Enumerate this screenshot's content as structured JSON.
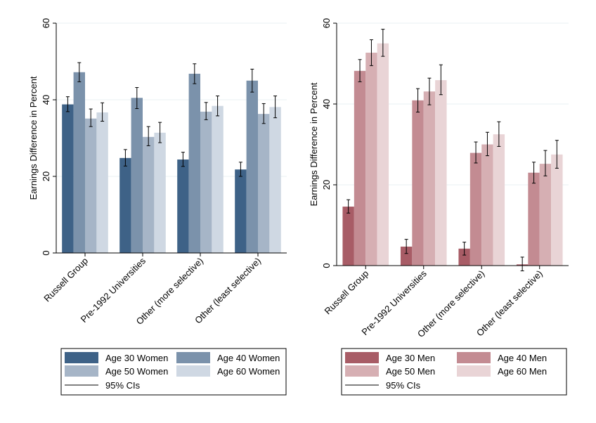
{
  "chart_data": [
    {
      "type": "bar",
      "title": "",
      "xlabel": "",
      "ylabel": "Earnings Difference in Percent",
      "ylim": [
        0,
        60
      ],
      "yticks": [
        "0",
        "20",
        "40",
        "60"
      ],
      "grid": true,
      "categories": [
        "Russell Group",
        "Pre-1992 Universities",
        "Other (more selective)",
        "Other (least selective)"
      ],
      "series": [
        {
          "name": "Age 30 Women",
          "color": "#3e6287",
          "values": [
            38.8,
            24.8,
            24.4,
            21.8
          ],
          "ci_low": [
            36.9,
            22.7,
            22.6,
            20.0
          ],
          "ci_high": [
            40.8,
            27.0,
            26.3,
            23.7
          ]
        },
        {
          "name": "Age 40 Women",
          "color": "#7b92ab",
          "values": [
            47.2,
            40.5,
            46.8,
            45.0
          ],
          "ci_low": [
            44.7,
            37.7,
            44.2,
            42.0
          ],
          "ci_high": [
            49.7,
            43.2,
            49.4,
            48.0
          ]
        },
        {
          "name": "Age 50 Women",
          "color": "#a6b5c7",
          "values": [
            35.1,
            30.3,
            36.9,
            36.3
          ],
          "ci_low": [
            33.0,
            28.0,
            34.8,
            33.8
          ],
          "ci_high": [
            37.6,
            33.0,
            39.3,
            39.0
          ]
        },
        {
          "name": "Age 60 Women",
          "color": "#cfd8e3",
          "values": [
            36.7,
            31.4,
            38.4,
            38.1
          ],
          "ci_low": [
            34.4,
            28.8,
            35.8,
            35.3
          ],
          "ci_high": [
            39.2,
            34.1,
            41.0,
            41.0
          ]
        }
      ],
      "legend": {
        "placement": "bottom",
        "ci_label": "95% CIs"
      }
    },
    {
      "type": "bar",
      "title": "",
      "xlabel": "",
      "ylabel": "Earnings Difference in Percent",
      "ylim": [
        0,
        60
      ],
      "yticks": [
        "0",
        "20",
        "40",
        "60"
      ],
      "grid": true,
      "categories": [
        "Russell Group",
        "Pre-1992 Universities",
        "Other (more selective)",
        "Other (least selective)"
      ],
      "series": [
        {
          "name": "Age 30 Men",
          "color": "#a85c66",
          "values": [
            14.6,
            4.7,
            4.2,
            0.3
          ],
          "ci_low": [
            13.0,
            3.0,
            2.6,
            -1.3
          ],
          "ci_high": [
            16.3,
            6.5,
            5.8,
            2.1
          ]
        },
        {
          "name": "Age 40 Men",
          "color": "#c38b92",
          "values": [
            48.2,
            40.9,
            27.9,
            23.0
          ],
          "ci_low": [
            45.5,
            38.0,
            25.4,
            20.4
          ],
          "ci_high": [
            51.0,
            43.8,
            30.6,
            25.6
          ]
        },
        {
          "name": "Age 50 Men",
          "color": "#d6afb3",
          "values": [
            52.7,
            43.1,
            30.0,
            25.2
          ],
          "ci_low": [
            49.5,
            39.8,
            27.2,
            22.2
          ],
          "ci_high": [
            55.9,
            46.4,
            33.0,
            28.5
          ]
        },
        {
          "name": "Age 60 Men",
          "color": "#e9d4d6",
          "values": [
            55.0,
            45.9,
            32.5,
            27.5
          ],
          "ci_low": [
            51.8,
            42.3,
            29.5,
            24.1
          ],
          "ci_high": [
            58.5,
            49.7,
            35.6,
            31.0
          ]
        }
      ],
      "legend": {
        "placement": "bottom",
        "ci_label": "95% CIs"
      }
    }
  ]
}
